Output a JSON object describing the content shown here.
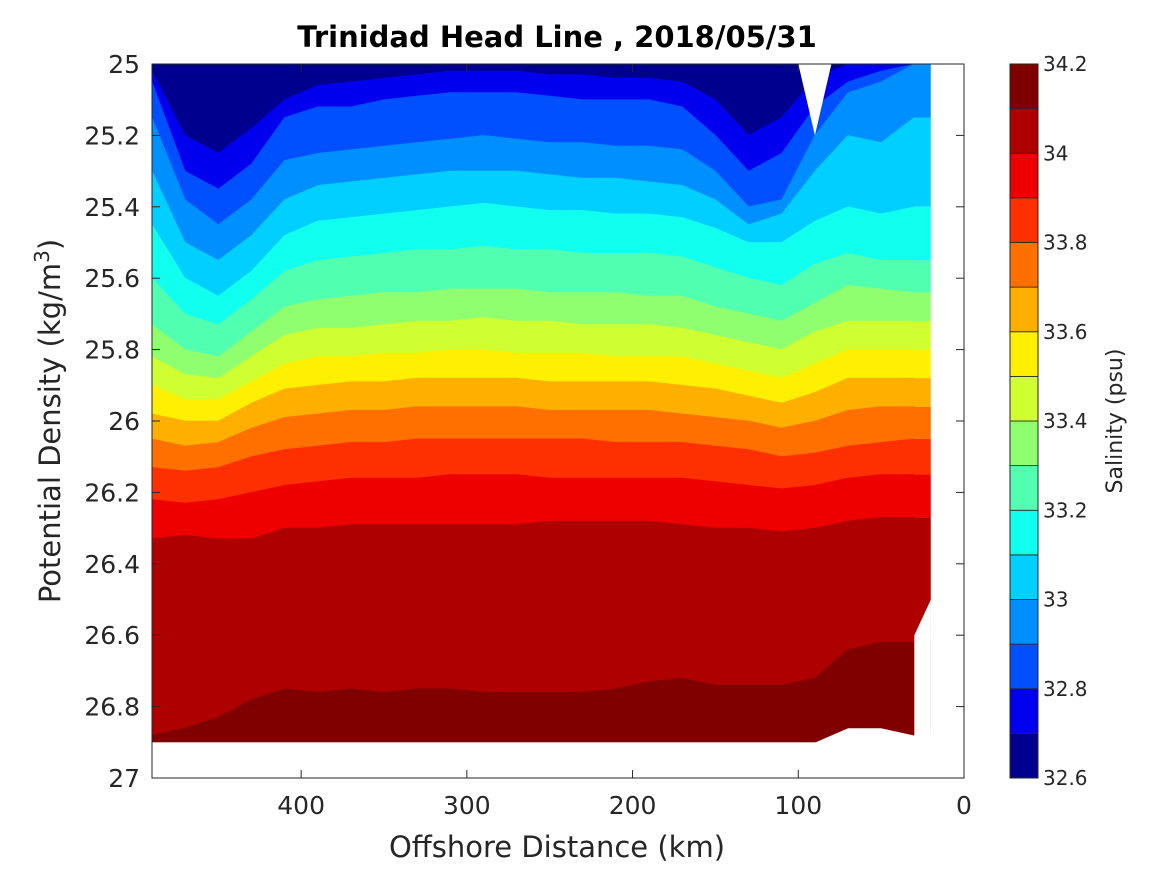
{
  "chart_data": {
    "type": "heatmap",
    "subtype": "filled-contour",
    "title": "Trinidad Head Line , 2018/05/31",
    "xlabel": "Offshore Distance (km)",
    "ylabel_main": "Potential Density (kg/m",
    "ylabel_sup": "3",
    "ylabel_tail": ")",
    "xlim": [
      490,
      0
    ],
    "ylim": [
      25,
      27
    ],
    "x_reversed": true,
    "y_reversed": true,
    "xticks": [
      400,
      300,
      200,
      100,
      0
    ],
    "xtick_labels": [
      "400",
      "300",
      "200",
      "100",
      "0"
    ],
    "yticks": [
      25,
      25.2,
      25.4,
      25.6,
      25.8,
      26,
      26.2,
      26.4,
      26.6,
      26.8,
      27
    ],
    "ytick_labels": [
      "25",
      "25.2",
      "25.4",
      "25.6",
      "25.8",
      "26",
      "26.2",
      "26.4",
      "26.6",
      "26.8",
      "27"
    ],
    "colorbar": {
      "label": "Salinity (psu)",
      "range": [
        32.6,
        34.2
      ],
      "ticks": [
        32.6,
        32.8,
        33,
        33.2,
        33.4,
        33.6,
        33.8,
        34,
        34.2
      ],
      "tick_labels": [
        "32.6",
        "32.8",
        "33",
        "33.2",
        "33.4",
        "33.6",
        "33.8",
        "34",
        "34.2"
      ],
      "levels": [
        32.6,
        32.7,
        32.8,
        32.9,
        33.0,
        33.1,
        33.2,
        33.3,
        33.4,
        33.5,
        33.6,
        33.7,
        33.8,
        33.9,
        34.0,
        34.1,
        34.2
      ],
      "colors": [
        "#00008f",
        "#0000ef",
        "#0050ff",
        "#008fff",
        "#00cfff",
        "#10ffef",
        "#50ffaf",
        "#8fff70",
        "#cfff30",
        "#ffef00",
        "#ffaf00",
        "#ff7000",
        "#ff3000",
        "#ef0000",
        "#af0000",
        "#800000"
      ]
    },
    "data_extent": {
      "x_min": 20,
      "x_max": 490,
      "y_min": 25,
      "y_max": 26.9
    },
    "grid": false,
    "boundary_x": [
      490,
      470,
      450,
      430,
      410,
      390,
      370,
      350,
      330,
      310,
      290,
      270,
      250,
      230,
      210,
      190,
      170,
      150,
      130,
      110,
      90,
      70,
      50,
      30
    ],
    "boundaries": [
      {
        "value": 32.7,
        "y": [
          25.02,
          25.2,
          25.25,
          25.18,
          25.1,
          25.06,
          25.05,
          25.04,
          25.03,
          25.02,
          25.02,
          25.02,
          25.03,
          25.03,
          25.04,
          25.04,
          25.05,
          25.1,
          25.2,
          25.15,
          25.04,
          25.0,
          25.0,
          25.0
        ]
      },
      {
        "value": 32.8,
        "y": [
          25.05,
          25.3,
          25.35,
          25.28,
          25.15,
          25.12,
          25.12,
          25.1,
          25.09,
          25.08,
          25.08,
          25.08,
          25.09,
          25.1,
          25.1,
          25.1,
          25.12,
          25.2,
          25.3,
          25.25,
          25.12,
          25.05,
          25.02,
          25.0
        ]
      },
      {
        "value": 32.9,
        "y": [
          25.15,
          25.38,
          25.45,
          25.38,
          25.27,
          25.25,
          25.24,
          25.23,
          25.22,
          25.21,
          25.2,
          25.21,
          25.22,
          25.22,
          25.23,
          25.23,
          25.24,
          25.3,
          25.4,
          25.38,
          25.2,
          25.08,
          25.05,
          25.0
        ]
      },
      {
        "value": 33.0,
        "y": [
          25.3,
          25.5,
          25.55,
          25.48,
          25.38,
          25.34,
          25.33,
          25.32,
          25.31,
          25.3,
          25.3,
          25.3,
          25.31,
          25.32,
          25.32,
          25.33,
          25.34,
          25.38,
          25.45,
          25.42,
          25.3,
          25.2,
          25.22,
          25.15
        ]
      },
      {
        "value": 33.1,
        "y": [
          25.45,
          25.6,
          25.65,
          25.58,
          25.48,
          25.44,
          25.43,
          25.42,
          25.41,
          25.4,
          25.39,
          25.4,
          25.41,
          25.41,
          25.42,
          25.42,
          25.43,
          25.46,
          25.5,
          25.5,
          25.44,
          25.4,
          25.42,
          25.4
        ]
      },
      {
        "value": 33.2,
        "y": [
          25.6,
          25.7,
          25.73,
          25.66,
          25.58,
          25.55,
          25.54,
          25.53,
          25.52,
          25.52,
          25.51,
          25.52,
          25.52,
          25.53,
          25.53,
          25.53,
          25.54,
          25.57,
          25.6,
          25.62,
          25.56,
          25.53,
          25.55,
          25.55
        ]
      },
      {
        "value": 33.3,
        "y": [
          25.73,
          25.8,
          25.82,
          25.75,
          25.68,
          25.66,
          25.65,
          25.64,
          25.64,
          25.63,
          25.63,
          25.63,
          25.64,
          25.64,
          25.64,
          25.65,
          25.65,
          25.68,
          25.7,
          25.72,
          25.67,
          25.62,
          25.63,
          25.64
        ]
      },
      {
        "value": 33.4,
        "y": [
          25.82,
          25.87,
          25.88,
          25.82,
          25.76,
          25.74,
          25.74,
          25.73,
          25.72,
          25.72,
          25.71,
          25.72,
          25.72,
          25.73,
          25.73,
          25.73,
          25.74,
          25.76,
          25.78,
          25.8,
          25.75,
          25.72,
          25.72,
          25.72
        ]
      },
      {
        "value": 33.5,
        "y": [
          25.9,
          25.94,
          25.94,
          25.89,
          25.84,
          25.82,
          25.82,
          25.81,
          25.81,
          25.8,
          25.8,
          25.81,
          25.81,
          25.81,
          25.82,
          25.82,
          25.82,
          25.84,
          25.86,
          25.88,
          25.84,
          25.8,
          25.8,
          25.8
        ]
      },
      {
        "value": 33.6,
        "y": [
          25.98,
          26.0,
          26.0,
          25.95,
          25.91,
          25.9,
          25.89,
          25.89,
          25.88,
          25.88,
          25.88,
          25.88,
          25.89,
          25.89,
          25.89,
          25.89,
          25.9,
          25.91,
          25.93,
          25.95,
          25.92,
          25.88,
          25.88,
          25.88
        ]
      },
      {
        "value": 33.7,
        "y": [
          26.05,
          26.07,
          26.06,
          26.02,
          25.99,
          25.98,
          25.97,
          25.97,
          25.96,
          25.96,
          25.96,
          25.96,
          25.97,
          25.97,
          25.97,
          25.97,
          25.98,
          25.99,
          26.0,
          26.02,
          26.0,
          25.97,
          25.96,
          25.96
        ]
      },
      {
        "value": 33.8,
        "y": [
          26.13,
          26.14,
          26.13,
          26.1,
          26.08,
          26.07,
          26.06,
          26.06,
          26.05,
          26.05,
          26.05,
          26.05,
          26.05,
          26.05,
          26.06,
          26.06,
          26.06,
          26.07,
          26.08,
          26.1,
          26.09,
          26.07,
          26.06,
          26.05
        ]
      },
      {
        "value": 33.9,
        "y": [
          26.22,
          26.23,
          26.22,
          26.2,
          26.18,
          26.17,
          26.16,
          26.16,
          26.16,
          26.15,
          26.15,
          26.15,
          26.16,
          26.16,
          26.16,
          26.16,
          26.16,
          26.17,
          26.18,
          26.19,
          26.18,
          26.16,
          26.15,
          26.15
        ]
      },
      {
        "value": 34.0,
        "y": [
          26.33,
          26.32,
          26.33,
          26.33,
          26.3,
          26.3,
          26.29,
          26.29,
          26.29,
          26.29,
          26.29,
          26.29,
          26.28,
          26.28,
          26.28,
          26.28,
          26.29,
          26.3,
          26.3,
          26.31,
          26.3,
          26.28,
          26.27,
          26.27
        ]
      },
      {
        "value": 34.1,
        "y": [
          26.88,
          26.86,
          26.83,
          26.78,
          26.75,
          26.76,
          26.75,
          26.76,
          26.75,
          26.75,
          26.76,
          26.76,
          26.76,
          26.76,
          26.75,
          26.73,
          26.72,
          26.74,
          26.74,
          26.74,
          26.72,
          26.64,
          26.62,
          26.62
        ]
      },
      {
        "value": 34.2,
        "y": [
          26.95,
          26.95,
          26.95,
          26.95,
          26.95,
          26.95,
          26.95,
          26.95,
          26.95,
          26.95,
          26.95,
          26.95,
          26.95,
          26.95,
          26.95,
          26.95,
          26.95,
          26.95,
          26.95,
          26.95,
          26.9,
          26.86,
          26.86,
          26.88
        ]
      }
    ],
    "gaps": [
      {
        "note": "no-data notch near surface",
        "x": [
          100,
          80,
          90
        ],
        "y": [
          25.0,
          25.0,
          25.2
        ]
      }
    ]
  }
}
